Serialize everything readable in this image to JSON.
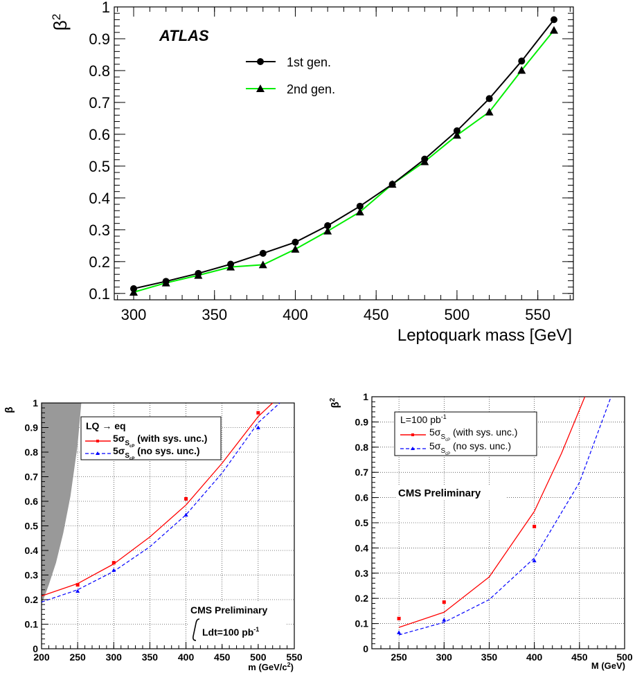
{
  "chart_data": [
    {
      "type": "line",
      "annotation": "ATLAS",
      "ylabel_base": "β",
      "ylabel_sup": "2",
      "xlabel": "Leptoquark mass [GeV]",
      "xlim": [
        288,
        572
      ],
      "ylim": [
        0.08,
        1.0
      ],
      "xticks": [
        "300",
        "350",
        "400",
        "450",
        "500",
        "550"
      ],
      "yticks": [
        "0.1",
        "0.2",
        "0.3",
        "0.4",
        "0.5",
        "0.6",
        "0.7",
        "0.8",
        "0.9",
        "1"
      ],
      "grid": false,
      "legend_position": "top-left",
      "series": [
        {
          "name": "1st gen.",
          "color": "#000000",
          "marker": "circle",
          "x": [
            300,
            320,
            340,
            360,
            380,
            400,
            420,
            440,
            460,
            480,
            500,
            520,
            540,
            560
          ],
          "y": [
            0.115,
            0.138,
            0.163,
            0.192,
            0.226,
            0.261,
            0.313,
            0.374,
            0.443,
            0.522,
            0.611,
            0.712,
            0.83,
            0.96
          ]
        },
        {
          "name": "2nd gen.",
          "color": "#00ee00",
          "marker": "triangle",
          "x": [
            300,
            320,
            340,
            360,
            380,
            400,
            420,
            440,
            460,
            480,
            500,
            520,
            540,
            560
          ],
          "y": [
            0.104,
            0.133,
            0.157,
            0.183,
            0.19,
            0.239,
            0.296,
            0.356,
            0.443,
            0.514,
            0.597,
            0.67,
            0.801,
            0.927
          ]
        }
      ]
    },
    {
      "type": "line",
      "ylabel": "β",
      "xlabel_base": "m (GeV/c",
      "xlabel_sup": "2",
      "xlabel_end": ")",
      "xlim": [
        200,
        550
      ],
      "ylim": [
        0,
        1
      ],
      "xticks": [
        "200",
        "250",
        "300",
        "350",
        "400",
        "450",
        "500",
        "550"
      ],
      "yticks": [
        "0",
        "0.1",
        "0.2",
        "0.3",
        "0.4",
        "0.5",
        "0.6",
        "0.7",
        "0.8",
        "0.9",
        "1"
      ],
      "grid": true,
      "legend_position": "top-left",
      "legend_title": "LQ → eq",
      "excluded_region_color": "#999999",
      "excluded_region": {
        "x": [
          200,
          210,
          220,
          230,
          240,
          250,
          255
        ],
        "y": [
          0.18,
          0.26,
          0.35,
          0.47,
          0.62,
          0.83,
          1.0
        ]
      },
      "annotation_line1": "CMS Preliminary",
      "annotation_line2_base": "Ldt=100 pb",
      "annotation_line2_sup": "-1",
      "series": [
        {
          "name_base": "5σ",
          "name_sub": "S",
          "name_subsub": "cP",
          "name_rest": " (with sys. unc.)",
          "color": "#ff0000",
          "style": "solid",
          "points": {
            "x": [
              250,
              300,
              400,
              500
            ],
            "y": [
              0.26,
              0.35,
              0.61,
              0.96
            ]
          },
          "fit": {
            "x": [
              200,
              250,
              300,
              350,
              400,
              450,
              500,
              520
            ],
            "y": [
              0.215,
              0.265,
              0.345,
              0.455,
              0.585,
              0.755,
              0.945,
              1.0
            ]
          }
        },
        {
          "name_base": "5σ",
          "name_sub": "S",
          "name_subsub": "cP",
          "name_rest": " (no sys. unc.)",
          "color": "#0000ff",
          "style": "dashed",
          "points": {
            "x": [
              250,
              300,
              400,
              500
            ],
            "y": [
              0.235,
              0.32,
              0.545,
              0.9
            ]
          },
          "fit": {
            "x": [
              200,
              250,
              300,
              350,
              400,
              450,
              500,
              530
            ],
            "y": [
              0.19,
              0.24,
              0.315,
              0.415,
              0.545,
              0.715,
              0.92,
              1.0
            ]
          }
        }
      ]
    },
    {
      "type": "line",
      "ylabel_base": "β",
      "ylabel_sup": "2",
      "xlabel": "M (GeV)",
      "xlim": [
        220,
        500
      ],
      "ylim": [
        0,
        1
      ],
      "xticks": [
        "250",
        "300",
        "350",
        "400",
        "450",
        "500"
      ],
      "yticks": [
        "0",
        "0.1",
        "0.2",
        "0.3",
        "0.4",
        "0.5",
        "0.6",
        "0.7",
        "0.8",
        "0.9",
        "1"
      ],
      "grid": true,
      "legend_position": "top-left",
      "legend_title_base": "L=100 pb",
      "legend_title_sup": "-1",
      "annotation": "CMS Preliminary",
      "series": [
        {
          "name_base": "5σ",
          "name_sub": "S",
          "name_subsub": "cP",
          "name_rest": " (with sys. unc.)",
          "color": "#ff0000",
          "style": "solid",
          "points": {
            "x": [
              250,
              300,
              400
            ],
            "y": [
              0.12,
              0.185,
              0.485
            ]
          },
          "fit": {
            "x": [
              250,
              300,
              350,
              400,
              430,
              456
            ],
            "y": [
              0.085,
              0.145,
              0.285,
              0.545,
              0.775,
              1.0
            ]
          }
        },
        {
          "name_base": "5σ",
          "name_sub": "S",
          "name_subsub": "cP",
          "name_rest": " (no sys. unc.)",
          "color": "#0000ff",
          "style": "dashed",
          "points": {
            "x": [
              250,
              300,
              400
            ],
            "y": [
              0.065,
              0.115,
              0.35
            ]
          },
          "fit": {
            "x": [
              250,
              300,
              350,
              400,
              450,
              485
            ],
            "y": [
              0.055,
              0.105,
              0.195,
              0.36,
              0.66,
              1.0
            ]
          }
        }
      ]
    }
  ]
}
